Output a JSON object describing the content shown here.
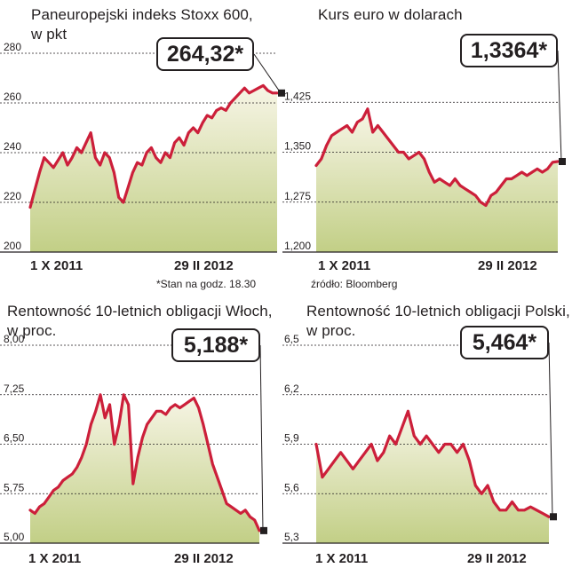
{
  "notes": {
    "time_note": "*Stan na godz. 18.30",
    "source": "źródło: Bloomberg"
  },
  "colors": {
    "line": "#cc1f3a",
    "fill_top": "#f7f5e6",
    "fill_bottom": "#c2cf86",
    "grid": "#231f20"
  },
  "chart_data": [
    {
      "type": "area",
      "title": "Paneuropejski indeks Stoxx 600,",
      "subtitle": "w pkt",
      "callout": "264,32*",
      "x_labels": [
        "1 X 2011",
        "29 II 2012"
      ],
      "yticks": [
        200,
        220,
        240,
        260,
        280
      ],
      "yticks_labels": [
        "200",
        "220",
        "240",
        "260",
        "280"
      ],
      "ylim": [
        200,
        280
      ],
      "values": [
        218,
        225,
        232,
        238,
        236,
        234,
        237,
        240,
        235,
        238,
        242,
        240,
        244,
        248,
        238,
        235,
        240,
        238,
        232,
        222,
        220,
        226,
        232,
        236,
        235,
        240,
        242,
        238,
        236,
        240,
        238,
        244,
        246,
        243,
        248,
        250,
        248,
        252,
        255,
        254,
        257,
        258,
        257,
        260,
        262,
        264,
        266,
        264,
        265,
        266,
        267,
        265,
        264,
        264
      ]
    },
    {
      "type": "area",
      "title": "Kurs euro w dolarach",
      "subtitle": "",
      "callout": "1,3364*",
      "x_labels": [
        "1 X 2011",
        "29 II 2012"
      ],
      "yticks": [
        1.2,
        1.275,
        1.35,
        1.425
      ],
      "yticks_labels": [
        "1,200",
        "1,275",
        "1,350",
        "1,425"
      ],
      "ylim": [
        1.2,
        1.5
      ],
      "values": [
        1.33,
        1.34,
        1.36,
        1.375,
        1.38,
        1.385,
        1.39,
        1.38,
        1.395,
        1.4,
        1.415,
        1.38,
        1.39,
        1.38,
        1.37,
        1.36,
        1.35,
        1.35,
        1.34,
        1.345,
        1.35,
        1.34,
        1.32,
        1.305,
        1.31,
        1.305,
        1.3,
        1.31,
        1.3,
        1.295,
        1.29,
        1.285,
        1.275,
        1.27,
        1.285,
        1.29,
        1.3,
        1.31,
        1.31,
        1.315,
        1.32,
        1.315,
        1.32,
        1.325,
        1.32,
        1.325,
        1.335,
        1.336
      ]
    },
    {
      "type": "area",
      "title": "Rentowność 10-letnich obligacji Włoch,",
      "subtitle": "w proc.",
      "callout": "5,188*",
      "x_labels": [
        "1 X 2011",
        "29 II 2012"
      ],
      "yticks": [
        5.0,
        5.75,
        6.5,
        7.25,
        8.0
      ],
      "yticks_labels": [
        "5,00",
        "5,75",
        "6,50",
        "7,25",
        "8,00"
      ],
      "ylim": [
        5.0,
        8.0
      ],
      "values": [
        5.5,
        5.45,
        5.55,
        5.6,
        5.7,
        5.8,
        5.85,
        5.95,
        6.0,
        6.05,
        6.15,
        6.3,
        6.5,
        6.8,
        7.0,
        7.25,
        6.9,
        7.1,
        6.5,
        6.8,
        7.25,
        7.1,
        5.9,
        6.3,
        6.6,
        6.8,
        6.9,
        7.0,
        7.0,
        6.95,
        7.05,
        7.1,
        7.05,
        7.1,
        7.15,
        7.2,
        7.05,
        6.8,
        6.5,
        6.2,
        6.0,
        5.8,
        5.6,
        5.55,
        5.5,
        5.45,
        5.5,
        5.4,
        5.35,
        5.19
      ]
    },
    {
      "type": "area",
      "title": "Rentowność 10-letnich obligacji Polski,",
      "subtitle": "w proc.",
      "callout": "5,464*",
      "x_labels": [
        "1 X 2011",
        "29 II 2012"
      ],
      "yticks": [
        5.3,
        5.6,
        5.9,
        6.2,
        6.5
      ],
      "yticks_labels": [
        "5,3",
        "5,6",
        "5,9",
        "6,2",
        "6,5"
      ],
      "ylim": [
        5.3,
        6.5
      ],
      "values": [
        5.9,
        5.7,
        5.75,
        5.8,
        5.85,
        5.8,
        5.75,
        5.8,
        5.85,
        5.9,
        5.8,
        5.85,
        5.95,
        5.9,
        6.0,
        6.1,
        5.95,
        5.9,
        5.95,
        5.9,
        5.85,
        5.9,
        5.9,
        5.85,
        5.9,
        5.8,
        5.65,
        5.6,
        5.65,
        5.55,
        5.5,
        5.5,
        5.55,
        5.5,
        5.5,
        5.52,
        5.5,
        5.48,
        5.46
      ]
    }
  ]
}
